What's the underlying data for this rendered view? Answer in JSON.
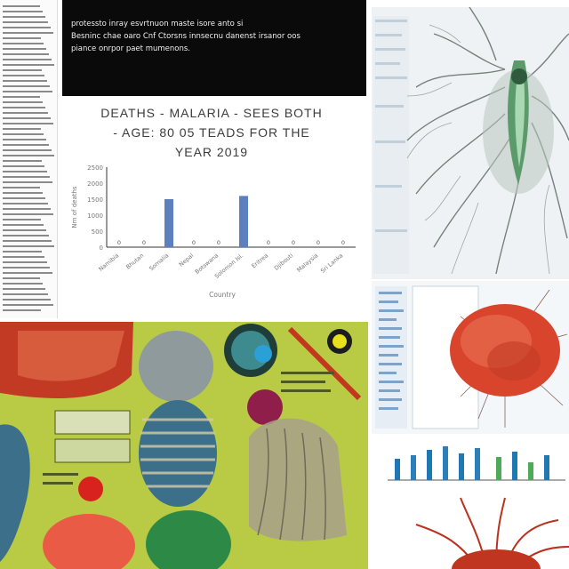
{
  "header": {
    "lines": [
      "protessto inray esvrtnuon maste isore anto si",
      "Besninc chae oaro Cnf Ctorsns innsecnu danenst irsanor oos",
      "piance onrpor paet mumenons."
    ]
  },
  "chart_data": {
    "type": "bar",
    "title_lines": [
      "DEATHS - MALARIA - SEES BOTH",
      "- AGE: 80 05 TEADS FOR THE",
      "YEAR 2019"
    ],
    "ylabel": "Nm of deaths",
    "xlabel": "Country",
    "y_ticks": [
      "2500",
      "2000",
      "1500",
      "1000",
      "500",
      "0"
    ],
    "ylim": [
      0,
      2500
    ],
    "categories": [
      "Namibia",
      "Bhutan",
      "Somalia",
      "Nepal",
      "Botswana",
      "Solomon Isl.",
      "Eritrea",
      "Djibouti",
      "Malaysia",
      "Sri Lanka"
    ],
    "values": [
      0,
      0,
      1500,
      0,
      0,
      1600,
      0,
      0,
      0,
      0
    ],
    "bar_labels": [
      "0",
      "0",
      "",
      "0",
      "0",
      "",
      "0",
      "0",
      "0",
      "0"
    ],
    "bar_color": "#5b7fbf"
  },
  "panels": {
    "nerve": "nerve-cell-illustration",
    "cell": "cell-illustration",
    "bio": "biology-collage"
  }
}
